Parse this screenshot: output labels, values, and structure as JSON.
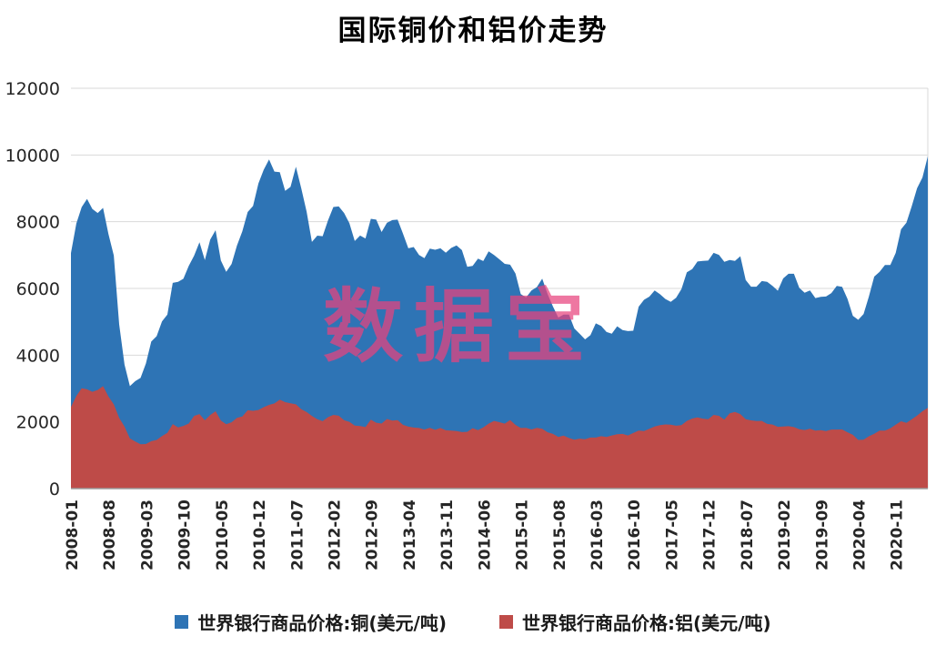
{
  "title": "国际铜价和铝价走势",
  "watermark": "数据宝",
  "chart_data": {
    "type": "area",
    "title": "国际铜价和铝价走势",
    "overlapping_areas": true,
    "grid": "horizontal",
    "legend_position": "bottom",
    "ylim": [
      0,
      12000
    ],
    "y_ticks": [
      0,
      2000,
      4000,
      6000,
      8000,
      10000,
      12000
    ],
    "x_start": "2008-01",
    "x_end": "2021-05",
    "x_frequency": "monthly",
    "x_tick_interval_months": 7,
    "x_tick_labels": [
      "2008-01",
      "2008-08",
      "2009-03",
      "2009-10",
      "2010-05",
      "2010-12",
      "2011-07",
      "2012-02",
      "2012-09",
      "2013-04",
      "2013-11",
      "2014-06",
      "2015-01",
      "2015-08",
      "2016-03",
      "2016-10",
      "2017-05",
      "2017-12",
      "2018-07",
      "2019-02",
      "2019-09",
      "2020-04",
      "2020-11"
    ],
    "series": [
      {
        "name": "世界银行商品价格:铜(美元/吨)",
        "color": "#2E74B5",
        "values": [
          7061,
          7941,
          8439,
          8685,
          8383,
          8260,
          8414,
          7635,
          6990,
          4926,
          3717,
          3072,
          3221,
          3315,
          3750,
          4407,
          4569,
          5014,
          5216,
          6165,
          6196,
          6288,
          6676,
          6982,
          7386,
          6848,
          7463,
          7745,
          6838,
          6499,
          6735,
          7284,
          7709,
          8292,
          8470,
          9147,
          9556,
          9868,
          9503,
          9483,
          8927,
          9045,
          9650,
          9001,
          8300,
          7394,
          7581,
          7565,
          8040,
          8441,
          8457,
          8260,
          7956,
          7420,
          7584,
          7498,
          8086,
          8061,
          7690,
          7966,
          8047,
          8061,
          7645,
          7204,
          7240,
          7000,
          6907,
          7193,
          7159,
          7203,
          7071,
          7214,
          7291,
          7149,
          6650,
          6674,
          6891,
          6821,
          7113,
          7002,
          6872,
          6737,
          6713,
          6446,
          5830,
          5729,
          5940,
          6042,
          6295,
          5833,
          5457,
          5127,
          5217,
          5216,
          4800,
          4639,
          4472,
          4599,
          4954,
          4873,
          4695,
          4642,
          4865,
          4751,
          4722,
          4731,
          5451,
          5660,
          5755,
          5941,
          5825,
          5684,
          5600,
          5720,
          5985,
          6486,
          6577,
          6808,
          6827,
          6834,
          7066,
          7007,
          6799,
          6852,
          6825,
          6966,
          6250,
          6051,
          6051,
          6220,
          6196,
          6075,
          5932,
          6300,
          6439,
          6438,
          6017,
          5868,
          5940,
          5710,
          5746,
          5757,
          5860,
          6075,
          6049,
          5686,
          5178,
          5058,
          5234,
          5754,
          6354,
          6499,
          6703,
          6701,
          7063,
          7772,
          7971,
          8460,
          9003,
          9325,
          9962
        ]
      },
      {
        "name": "世界银行商品价格:铝(美元/吨)",
        "color": "#BE4B48",
        "values": [
          2445,
          2777,
          3005,
          2975,
          2903,
          2957,
          3071,
          2762,
          2525,
          2122,
          1857,
          1504,
          1413,
          1330,
          1336,
          1421,
          1460,
          1574,
          1668,
          1934,
          1833,
          1879,
          1949,
          2180,
          2234,
          2049,
          2206,
          2317,
          2041,
          1931,
          1988,
          2118,
          2162,
          2347,
          2332,
          2356,
          2440,
          2508,
          2553,
          2667,
          2592,
          2559,
          2525,
          2379,
          2293,
          2180,
          2080,
          2022,
          2142,
          2208,
          2184,
          2049,
          2002,
          1890,
          1876,
          1845,
          2064,
          1974,
          1949,
          2087,
          2038,
          2054,
          1913,
          1857,
          1831,
          1815,
          1770,
          1818,
          1761,
          1815,
          1749,
          1739,
          1727,
          1695,
          1703,
          1810,
          1750,
          1834,
          1948,
          2030,
          1990,
          1946,
          2056,
          1909,
          1816,
          1818,
          1774,
          1819,
          1792,
          1687,
          1639,
          1548,
          1590,
          1516,
          1467,
          1497,
          1481,
          1531,
          1531,
          1571,
          1548,
          1593,
          1629,
          1639,
          1592,
          1665,
          1738,
          1727,
          1791,
          1861,
          1901,
          1924,
          1916,
          1885,
          1903,
          2030,
          2099,
          2132,
          2097,
          2080,
          2210,
          2182,
          2070,
          2255,
          2300,
          2234,
          2082,
          2046,
          2026,
          2029,
          1938,
          1920,
          1853,
          1861,
          1871,
          1845,
          1780,
          1756,
          1794,
          1741,
          1754,
          1724,
          1771,
          1771,
          1773,
          1688,
          1611,
          1460,
          1464,
          1569,
          1644,
          1737,
          1740,
          1806,
          1918,
          2019,
          1971,
          2076,
          2189,
          2319,
          2421
        ]
      }
    ]
  }
}
